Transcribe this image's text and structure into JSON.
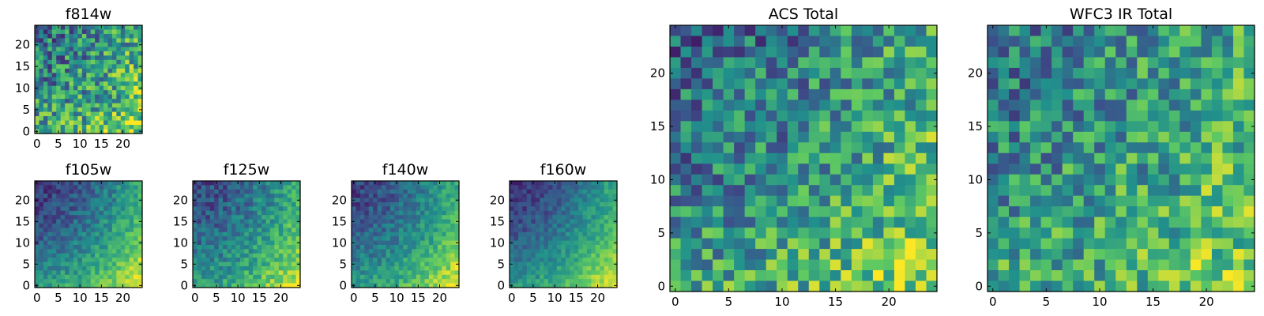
{
  "chart_data": [
    {
      "type": "heatmap",
      "title": "f814w",
      "x_ticks": [
        "0",
        "5",
        "10",
        "15",
        "20"
      ],
      "y_ticks": [
        "0",
        "5",
        "10",
        "15",
        "20"
      ],
      "xlim": [
        0,
        25
      ],
      "ylim": [
        0,
        25
      ],
      "grid": false,
      "rows": 25,
      "cols": 25,
      "colormap": "viridis",
      "gradient_strength": 0.5,
      "noise_level": 0.62,
      "seed": 11
    },
    {
      "type": "heatmap",
      "title": "f105w",
      "x_ticks": [
        "0",
        "5",
        "10",
        "15",
        "20"
      ],
      "y_ticks": [
        "0",
        "5",
        "10",
        "15",
        "20"
      ],
      "xlim": [
        0,
        25
      ],
      "ylim": [
        0,
        25
      ],
      "grid": false,
      "rows": 25,
      "cols": 25,
      "colormap": "viridis",
      "gradient_strength": 0.95,
      "noise_level": 0.25,
      "seed": 23
    },
    {
      "type": "heatmap",
      "title": "f125w",
      "x_ticks": [
        "0",
        "5",
        "10",
        "15",
        "20"
      ],
      "y_ticks": [
        "0",
        "5",
        "10",
        "15",
        "20"
      ],
      "xlim": [
        0,
        25
      ],
      "ylim": [
        0,
        25
      ],
      "grid": false,
      "rows": 25,
      "cols": 25,
      "colormap": "viridis",
      "gradient_strength": 0.85,
      "noise_level": 0.3,
      "seed": 37
    },
    {
      "type": "heatmap",
      "title": "f140w",
      "x_ticks": [
        "0",
        "5",
        "10",
        "15",
        "20"
      ],
      "y_ticks": [
        "0",
        "5",
        "10",
        "15",
        "20"
      ],
      "xlim": [
        0,
        25
      ],
      "ylim": [
        0,
        25
      ],
      "grid": false,
      "rows": 25,
      "cols": 25,
      "colormap": "viridis",
      "gradient_strength": 0.9,
      "noise_level": 0.25,
      "seed": 41
    },
    {
      "type": "heatmap",
      "title": "f160w",
      "x_ticks": [
        "0",
        "5",
        "10",
        "15",
        "20"
      ],
      "y_ticks": [
        "0",
        "5",
        "10",
        "15",
        "20"
      ],
      "xlim": [
        0,
        25
      ],
      "ylim": [
        0,
        25
      ],
      "grid": false,
      "rows": 25,
      "cols": 25,
      "colormap": "viridis",
      "gradient_strength": 1.0,
      "noise_level": 0.2,
      "seed": 53
    },
    {
      "type": "heatmap",
      "title": "ACS Total",
      "x_ticks": [
        "0",
        "5",
        "10",
        "15",
        "20"
      ],
      "y_ticks": [
        "0",
        "5",
        "10",
        "15",
        "20"
      ],
      "xlim": [
        0,
        25
      ],
      "ylim": [
        0,
        25
      ],
      "grid": false,
      "rows": 25,
      "cols": 25,
      "colormap": "viridis",
      "gradient_strength": 0.6,
      "noise_level": 0.55,
      "seed": 67
    },
    {
      "type": "heatmap",
      "title": "WFC3 IR Total",
      "x_ticks": [
        "0",
        "5",
        "10",
        "15",
        "20"
      ],
      "y_ticks": [
        "0",
        "5",
        "10",
        "15",
        "20"
      ],
      "xlim": [
        0,
        25
      ],
      "ylim": [
        0,
        25
      ],
      "grid": false,
      "rows": 25,
      "cols": 25,
      "colormap": "viridis",
      "gradient_strength": 0.45,
      "noise_level": 0.55,
      "seed": 79
    }
  ],
  "colors": {
    "colormap_stops": [
      "#440154",
      "#3b528b",
      "#21918c",
      "#5ec962",
      "#fde725"
    ],
    "axis": "#000000"
  }
}
